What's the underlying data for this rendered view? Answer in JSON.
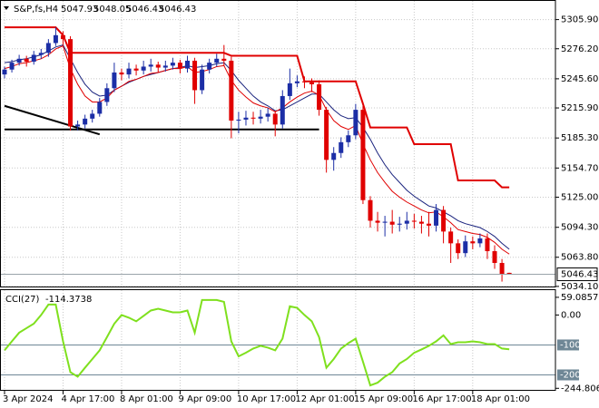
{
  "chart_data": {
    "type": "candlestick",
    "title": "S&P,fs,H4",
    "categories": [
      "3 Apr 2024",
      null,
      null,
      null,
      null,
      null,
      null,
      null,
      "4 Apr 17:00",
      null,
      null,
      null,
      null,
      null,
      null,
      null,
      "8 Apr 01:00",
      null,
      null,
      null,
      null,
      null,
      null,
      null,
      "9 Apr 09:00",
      null,
      null,
      null,
      null,
      null,
      null,
      null,
      "10 Apr 17:00",
      null,
      null,
      null,
      null,
      null,
      null,
      null,
      "12 Apr 01:00",
      null,
      null,
      null,
      null,
      null,
      null,
      null,
      "15 Apr 09:00",
      null,
      null,
      null,
      null,
      null,
      null,
      null,
      "16 Apr 17:00",
      null,
      null,
      null,
      null,
      null,
      null,
      null,
      "18 Apr 01:00",
      null,
      null,
      null,
      null,
      null
    ],
    "open": [
      5250,
      5255,
      5262,
      5266,
      5263,
      5270,
      5272,
      5282,
      5290,
      5286,
      5197,
      5199,
      5205,
      5210,
      5222,
      5236,
      5252,
      5250,
      5256,
      5254,
      5258,
      5260,
      5257,
      5259,
      5262,
      5256,
      5264,
      5234,
      5255,
      5262,
      5266,
      5264,
      5203,
      5204,
      5206,
      5205,
      5207,
      5210,
      5199,
      5228,
      5241,
      5243,
      5242,
      5240,
      5214,
      5163,
      5170,
      5181,
      5188,
      5214,
      5122,
      5101,
      5099,
      5100,
      5097,
      5098,
      5101,
      5100,
      5098,
      5096,
      5112,
      5090,
      5078,
      5068,
      5080,
      5078,
      5083,
      5070,
      5058,
      5047.93
    ],
    "high": [
      5258,
      5265,
      5270,
      5269,
      5274,
      5276,
      5286,
      5298,
      5294,
      5289,
      5203,
      5209,
      5214,
      5226,
      5241,
      5262,
      5256,
      5262,
      5260,
      5264,
      5266,
      5263,
      5264,
      5267,
      5265,
      5269,
      5267,
      5260,
      5266,
      5271,
      5280,
      5268,
      5212,
      5213,
      5212,
      5214,
      5216,
      5213,
      5234,
      5256,
      5249,
      5248,
      5246,
      5244,
      5217,
      5176,
      5186,
      5193,
      5220,
      5218,
      5126,
      5110,
      5106,
      5112,
      5105,
      5110,
      5108,
      5106,
      5110,
      5118,
      5116,
      5094,
      5082,
      5086,
      5085,
      5088,
      5088,
      5076,
      5062,
      5048.05
    ],
    "low": [
      5246,
      5252,
      5259,
      5258,
      5260,
      5266,
      5268,
      5279,
      5280,
      5193,
      5193,
      5195,
      5201,
      5207,
      5218,
      5232,
      5244,
      5246,
      5249,
      5250,
      5253,
      5252,
      5253,
      5255,
      5251,
      5252,
      5220,
      5230,
      5251,
      5258,
      5259,
      5185,
      5190,
      5198,
      5199,
      5200,
      5202,
      5187,
      5195,
      5224,
      5237,
      5236,
      5232,
      5208,
      5150,
      5152,
      5165,
      5176,
      5184,
      5118,
      5094,
      5090,
      5085,
      5088,
      5090,
      5092,
      5093,
      5088,
      5085,
      5090,
      5078,
      5058,
      5062,
      5064,
      5072,
      5074,
      5062,
      5052,
      5039,
      5046.43
    ],
    "close": [
      5255,
      5262,
      5266,
      5263,
      5270,
      5272,
      5282,
      5290,
      5286,
      5197,
      5199,
      5205,
      5210,
      5222,
      5236,
      5252,
      5250,
      5256,
      5254,
      5258,
      5260,
      5257,
      5259,
      5262,
      5256,
      5264,
      5234,
      5255,
      5262,
      5266,
      5264,
      5203,
      5204,
      5206,
      5205,
      5207,
      5210,
      5199,
      5228,
      5241,
      5243,
      5242,
      5240,
      5214,
      5163,
      5170,
      5181,
      5188,
      5214,
      5122,
      5101,
      5099,
      5100,
      5097,
      5098,
      5101,
      5100,
      5098,
      5096,
      5112,
      5090,
      5078,
      5068,
      5080,
      5078,
      5083,
      5070,
      5058,
      5046,
      5046.43
    ],
    "up_color": "#1c2ea6",
    "down_color": "#e00000",
    "overlays": [
      {
        "color": "#e00000",
        "line_width": 2,
        "values": [
          5298,
          5298,
          5298,
          5298,
          5298,
          5298,
          5298,
          5298,
          5290,
          5272,
          5272,
          5272,
          5272,
          5272,
          5272,
          5272,
          5272,
          5272,
          5272,
          5272,
          5272,
          5272,
          5272,
          5272,
          5272,
          5272,
          5272,
          5272,
          5272,
          5272,
          5272,
          5269,
          5269,
          5269,
          5269,
          5269,
          5269,
          5269,
          5269,
          5269,
          5269,
          5243,
          5243,
          5243,
          5243,
          5243,
          5243,
          5243,
          5243,
          5220,
          5196,
          5196,
          5196,
          5196,
          5196,
          5196,
          5179,
          5179,
          5179,
          5179,
          5179,
          5179,
          5142,
          5142,
          5142,
          5142,
          5142,
          5142,
          5135,
          5135
        ]
      },
      {
        "color": "#1a237e",
        "line_width": 1,
        "values": [
          5262,
          5263,
          5265,
          5266,
          5268,
          5270,
          5274,
          5278,
          5280,
          5266,
          5252,
          5240,
          5232,
          5228,
          5229,
          5234,
          5238,
          5242,
          5245,
          5248,
          5250,
          5252,
          5254,
          5256,
          5257,
          5259,
          5257,
          5258,
          5259,
          5261,
          5262,
          5254,
          5244,
          5236,
          5228,
          5222,
          5218,
          5213,
          5214,
          5218,
          5222,
          5226,
          5230,
          5230,
          5222,
          5214,
          5208,
          5205,
          5206,
          5196,
          5184,
          5170,
          5158,
          5148,
          5140,
          5132,
          5126,
          5121,
          5116,
          5114,
          5110,
          5106,
          5101,
          5098,
          5096,
          5094,
          5090,
          5085,
          5078,
          5072
        ]
      },
      {
        "color": "#e00000",
        "line_width": 1,
        "values": [
          5256,
          5258,
          5261,
          5262,
          5264,
          5266,
          5270,
          5276,
          5279,
          5256,
          5240,
          5228,
          5222,
          5222,
          5226,
          5234,
          5238,
          5243,
          5245,
          5248,
          5251,
          5252,
          5254,
          5256,
          5256,
          5258,
          5252,
          5253,
          5255,
          5258,
          5259,
          5244,
          5234,
          5227,
          5221,
          5218,
          5216,
          5212,
          5216,
          5222,
          5227,
          5231,
          5233,
          5229,
          5214,
          5203,
          5197,
          5194,
          5198,
          5179,
          5163,
          5150,
          5140,
          5131,
          5125,
          5120,
          5116,
          5112,
          5109,
          5110,
          5105,
          5099,
          5092,
          5090,
          5088,
          5087,
          5084,
          5079,
          5072,
          5067
        ]
      }
    ],
    "lines": [
      {
        "color": "#000000",
        "x": [
          0,
          13
        ],
        "values": [
          5218,
          5189
        ]
      },
      {
        "color": "#000000",
        "x": [
          0,
          43
        ],
        "values": [
          5194,
          5194
        ]
      }
    ],
    "ylim": [
      5034,
      5324
    ],
    "yticks": [
      {
        "value": 5305.9,
        "label": "5305.90"
      },
      {
        "value": 5276.2,
        "label": "5276.20"
      },
      {
        "value": 5245.6,
        "label": "5245.60"
      },
      {
        "value": 5215.9,
        "label": "5215.90"
      },
      {
        "value": 5185.3,
        "label": "5185.30"
      },
      {
        "value": 5154.7,
        "label": "5154.70"
      },
      {
        "value": 5125,
        "label": "5125.00"
      },
      {
        "value": 5094.3,
        "label": "5094.30"
      },
      {
        "value": 5063.8,
        "label": "5063.80"
      },
      {
        "value": 5034.1,
        "label": "5034.10"
      }
    ],
    "grid": true,
    "indicator": {
      "type": "line",
      "title": "CCI(27)",
      "color": "#7fe01e",
      "values": [
        -118,
        -88,
        -59,
        -44,
        -29,
        0,
        35,
        35,
        -88,
        -191,
        -206,
        -176,
        -147,
        -118,
        -74,
        -29,
        0,
        -9,
        -21,
        -3,
        15,
        21,
        15,
        9,
        9,
        15,
        -59,
        50,
        50,
        50,
        44,
        -88,
        -138,
        -126,
        -112,
        -103,
        -109,
        -118,
        -79,
        29,
        24,
        0,
        -21,
        -74,
        -176,
        -147,
        -112,
        -94,
        -79,
        -156,
        -235,
        -226,
        -206,
        -191,
        -162,
        -147,
        -126,
        -115,
        -103,
        -88,
        -68,
        -97,
        -91,
        -91,
        -88,
        -91,
        -97,
        -97,
        -112,
        -114.3738
      ],
      "ylim": [
        -250,
        77
      ],
      "yticks": [
        {
          "value": 59.0857,
          "label": "59.0857"
        },
        {
          "value": 0,
          "label": "0.00"
        },
        {
          "value": -244.8067,
          "label": "-244.8067"
        }
      ],
      "levels": [
        -100,
        -200
      ],
      "level_color": "#6f8796"
    }
  }
}
